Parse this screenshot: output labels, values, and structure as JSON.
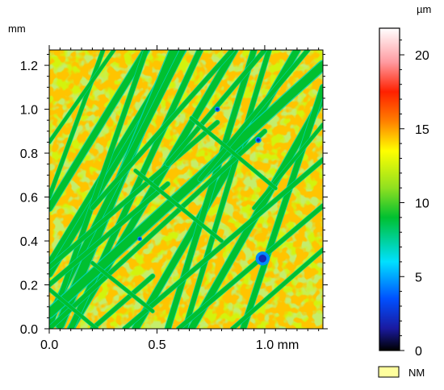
{
  "chart_data": {
    "type": "heatmap",
    "title": "",
    "x_axis": {
      "unit_label": "mm",
      "range": [
        0.0,
        1.27
      ],
      "ticks": [
        {
          "value": 0.0,
          "label": "0.0"
        },
        {
          "value": 0.5,
          "label": "0.5"
        },
        {
          "value": 1.0,
          "label": "1.0"
        }
      ]
    },
    "y_axis": {
      "unit_label": "mm",
      "range": [
        0.0,
        1.27
      ],
      "ticks": [
        {
          "value": 0.0,
          "label": "0.0"
        },
        {
          "value": 0.2,
          "label": "0.2"
        },
        {
          "value": 0.4,
          "label": "0.4"
        },
        {
          "value": 0.6,
          "label": "0.6"
        },
        {
          "value": 0.8,
          "label": "0.8"
        },
        {
          "value": 1.0,
          "label": "1.0"
        },
        {
          "value": 1.2,
          "label": "1.2"
        }
      ]
    },
    "colorbar": {
      "unit_label": "µm",
      "range": [
        0,
        21.8
      ],
      "ticks": [
        {
          "value": 0,
          "label": "0"
        },
        {
          "value": 5,
          "label": "5"
        },
        {
          "value": 10,
          "label": "10"
        },
        {
          "value": 15,
          "label": "15"
        },
        {
          "value": 20,
          "label": "20"
        }
      ],
      "colorscale": [
        {
          "value": 0,
          "color": "#000000"
        },
        {
          "value": 1.5,
          "color": "#1a1aa0"
        },
        {
          "value": 3.5,
          "color": "#0050ff"
        },
        {
          "value": 6,
          "color": "#00e0ff"
        },
        {
          "value": 9,
          "color": "#00c030"
        },
        {
          "value": 11,
          "color": "#90e020"
        },
        {
          "value": 13.5,
          "color": "#ffff00"
        },
        {
          "value": 15.5,
          "color": "#ff8000"
        },
        {
          "value": 17.5,
          "color": "#ff2000"
        },
        {
          "value": 19.5,
          "color": "#ff9aa0"
        },
        {
          "value": 21.8,
          "color": "#ffffff"
        }
      ]
    },
    "legend": {
      "label": "NM",
      "color": "#ffff9e",
      "placement": "bottom-right"
    },
    "texture": {
      "base_height": 12.5,
      "groove_height": 9.0,
      "groove_edge_height": 7.0,
      "hot_spot_height": 15.5,
      "pit_height": 2.0
    },
    "grooves": [
      {
        "x1": 0.0,
        "y1": 0.55,
        "x2": 0.45,
        "y2": 1.27,
        "w": 0.03
      },
      {
        "x1": 0.0,
        "y1": 0.25,
        "x2": 0.62,
        "y2": 1.27,
        "w": 0.03
      },
      {
        "x1": 0.1,
        "y1": 0.0,
        "x2": 0.86,
        "y2": 1.27,
        "w": 0.03
      },
      {
        "x1": 0.4,
        "y1": 0.0,
        "x2": 1.15,
        "y2": 1.27,
        "w": 0.03
      },
      {
        "x1": 0.66,
        "y1": 0.0,
        "x2": 1.27,
        "y2": 1.05,
        "w": 0.03
      },
      {
        "x1": 0.0,
        "y1": 0.3,
        "x2": 0.6,
        "y2": 1.27,
        "w": 0.022
      },
      {
        "x1": 0.05,
        "y1": 0.02,
        "x2": 0.58,
        "y2": 1.27,
        "w": 0.04
      },
      {
        "x1": 0.0,
        "y1": 0.05,
        "x2": 0.62,
        "y2": 1.27,
        "w": 0.026
      },
      {
        "x1": 0.1,
        "y1": 0.0,
        "x2": 0.7,
        "y2": 1.27,
        "w": 0.026
      },
      {
        "x1": 0.0,
        "y1": 0.0,
        "x2": 0.45,
        "y2": 1.27,
        "w": 0.022
      },
      {
        "x1": 0.55,
        "y1": 0.0,
        "x2": 0.95,
        "y2": 1.27,
        "w": 0.026
      },
      {
        "x1": 0.63,
        "y1": 0.0,
        "x2": 1.02,
        "y2": 1.27,
        "w": 0.022
      },
      {
        "x1": 0.9,
        "y1": 0.0,
        "x2": 1.27,
        "y2": 1.1,
        "w": 0.026
      },
      {
        "x1": 0.0,
        "y1": 0.6,
        "x2": 0.25,
        "y2": 1.27,
        "w": 0.018
      },
      {
        "x1": 0.0,
        "y1": 0.28,
        "x2": 0.78,
        "y2": 0.94,
        "w": 0.02
      },
      {
        "x1": 0.0,
        "y1": 0.2,
        "x2": 0.55,
        "y2": 0.66,
        "w": 0.02
      },
      {
        "x1": 0.2,
        "y1": 0.0,
        "x2": 0.48,
        "y2": 0.24,
        "w": 0.02
      },
      {
        "x1": 0.35,
        "y1": 0.0,
        "x2": 1.27,
        "y2": 0.77,
        "w": 0.02
      },
      {
        "x1": 0.6,
        "y1": 0.0,
        "x2": 1.27,
        "y2": 0.56,
        "w": 0.02
      },
      {
        "x1": 0.85,
        "y1": 0.0,
        "x2": 1.27,
        "y2": 0.36,
        "w": 0.018
      },
      {
        "x1": 0.0,
        "y1": 0.07,
        "x2": 1.27,
        "y2": 1.2,
        "w": 0.04
      },
      {
        "x1": 0.0,
        "y1": 0.0,
        "x2": 1.0,
        "y2": 0.9,
        "w": 0.02
      },
      {
        "x1": 0.2,
        "y1": 0.55,
        "x2": 0.85,
        "y2": 1.27,
        "w": 0.02
      },
      {
        "x1": 0.0,
        "y1": 0.85,
        "x2": 0.3,
        "y2": 1.27,
        "w": 0.016
      },
      {
        "x1": 0.55,
        "y1": 0.75,
        "x2": 1.0,
        "y2": 1.27,
        "w": 0.02
      },
      {
        "x1": 0.7,
        "y1": 0.68,
        "x2": 1.2,
        "y2": 1.27,
        "w": 0.02
      },
      {
        "x1": 0.95,
        "y1": 0.55,
        "x2": 1.27,
        "y2": 0.93,
        "w": 0.016
      },
      {
        "x1": 0.0,
        "y1": 0.18,
        "x2": 0.22,
        "y2": 0.0,
        "w": 0.016
      },
      {
        "x1": 0.4,
        "y1": 0.72,
        "x2": 0.8,
        "y2": 0.4,
        "w": 0.016
      },
      {
        "x1": 0.2,
        "y1": 0.3,
        "x2": 0.48,
        "y2": 0.08,
        "w": 0.016
      },
      {
        "x1": 0.66,
        "y1": 0.96,
        "x2": 1.05,
        "y2": 0.64,
        "w": 0.016
      }
    ],
    "pits": [
      {
        "x": 0.99,
        "y": 0.32,
        "r": 0.018
      },
      {
        "x": 0.97,
        "y": 0.86,
        "r": 0.008
      },
      {
        "x": 0.78,
        "y": 1.0,
        "r": 0.007
      },
      {
        "x": 0.42,
        "y": 0.41,
        "r": 0.006
      }
    ]
  }
}
